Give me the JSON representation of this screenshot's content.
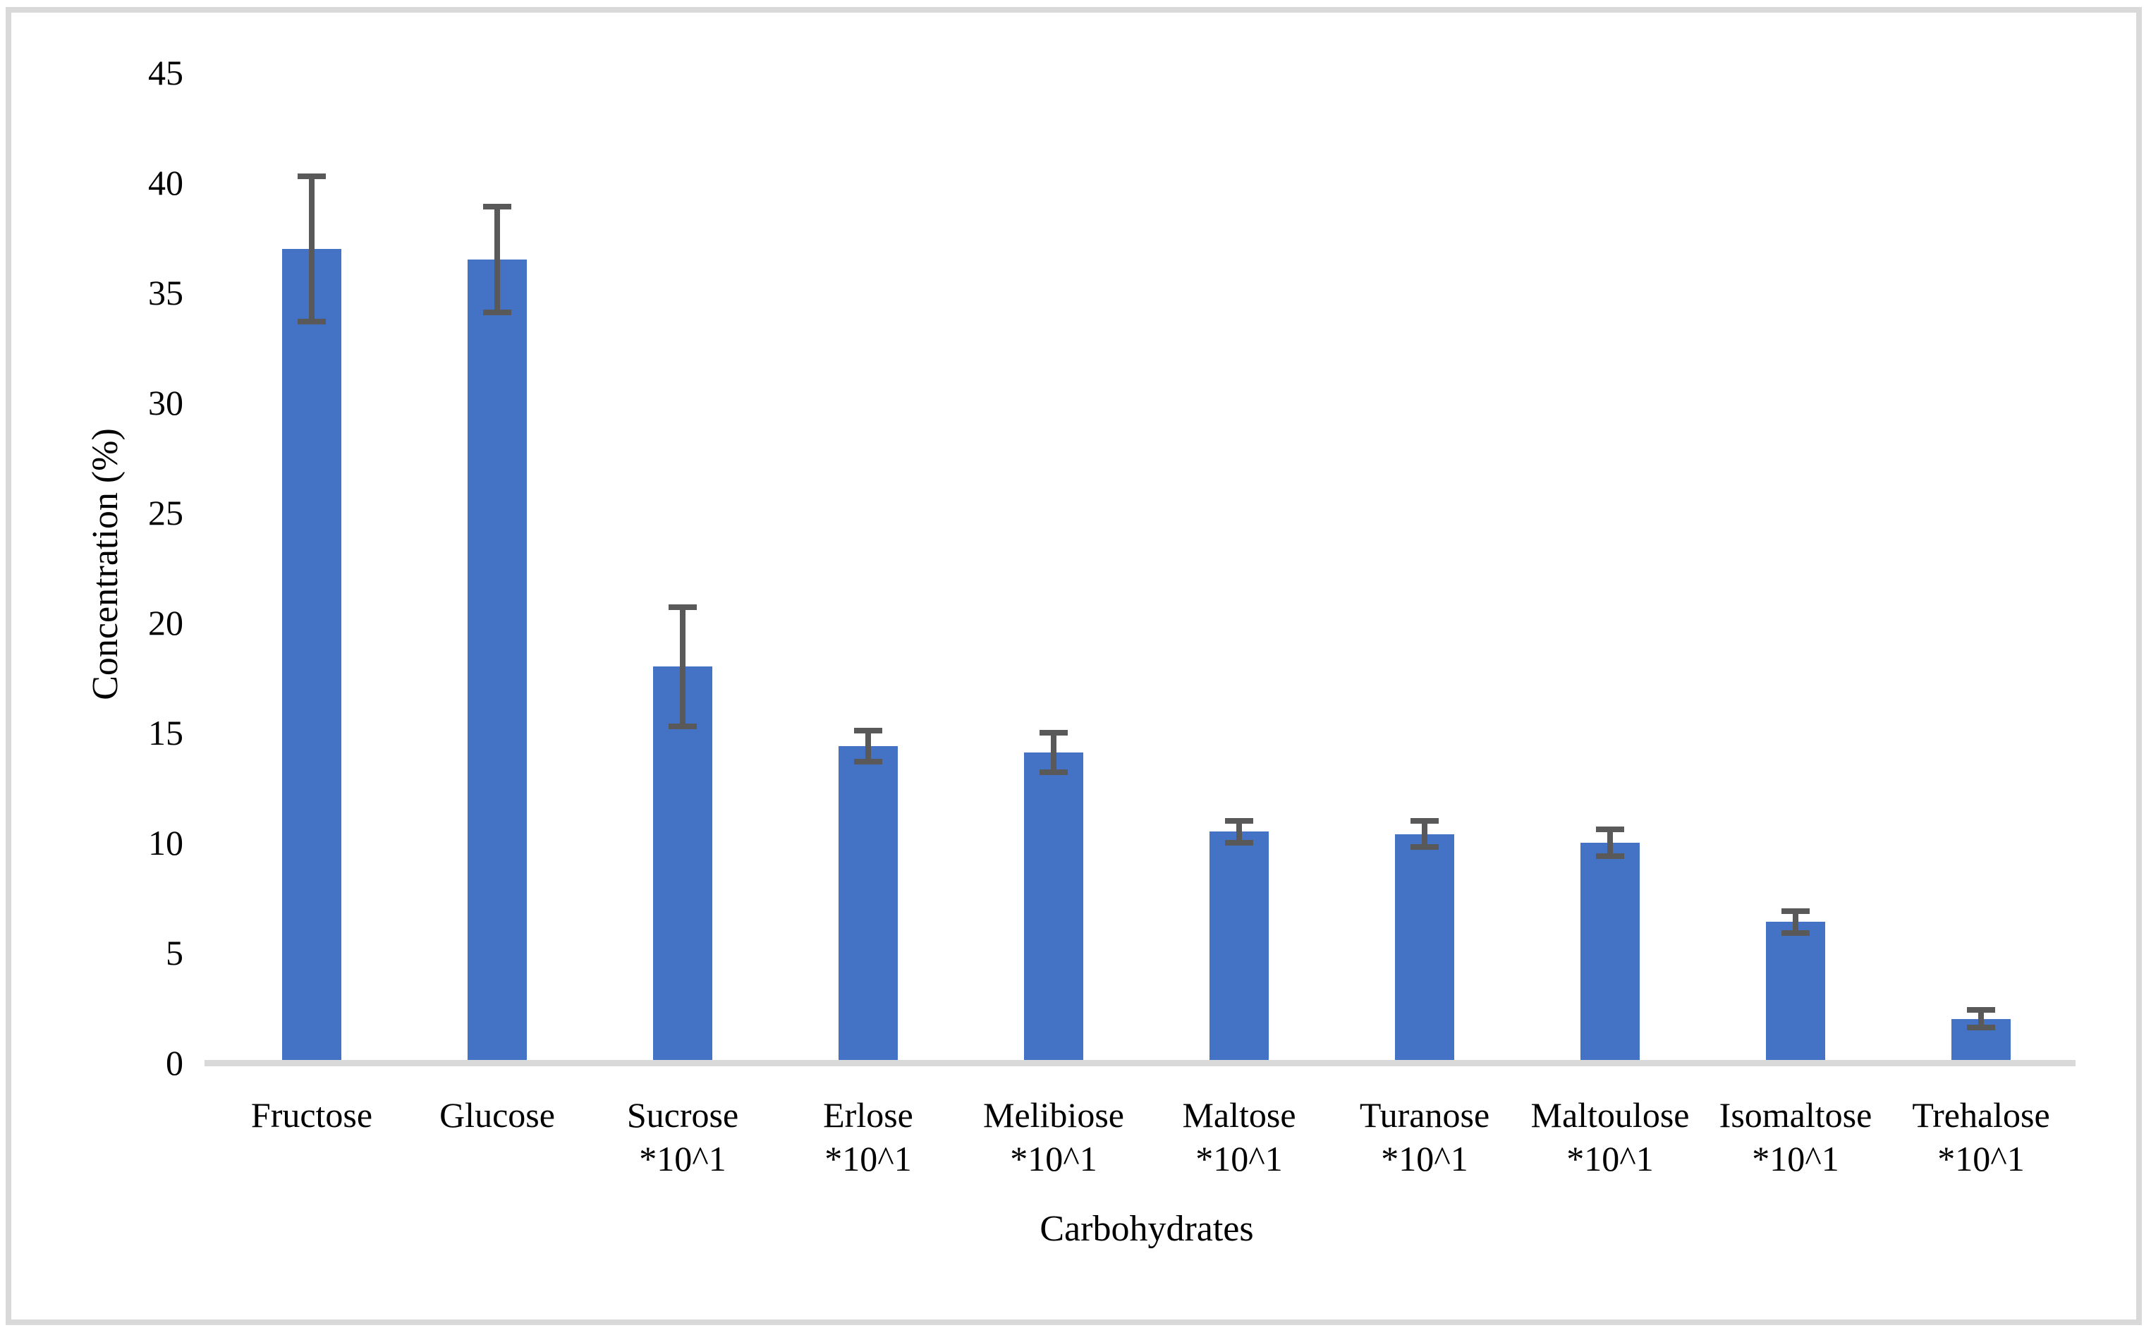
{
  "chart_data": {
    "type": "bar",
    "title": "",
    "xlabel": "Carbohydrates",
    "ylabel": "Concentration (%)",
    "ylim": [
      0,
      45
    ],
    "yticks": [
      0,
      5,
      10,
      15,
      20,
      25,
      30,
      35,
      40,
      45
    ],
    "grid": false,
    "legend": false,
    "categories": [
      "Fructose",
      "Glucose",
      "Sucrose *10^1",
      "Erlose *10^1",
      "Melibiose *10^1",
      "Maltose *10^1",
      "Turanose *10^1",
      "Maltoulose *10^1",
      "Isomaltose *10^1",
      "Trehalose *10^1"
    ],
    "category_lines": [
      [
        "Fructose"
      ],
      [
        "Glucose"
      ],
      [
        "Sucrose",
        "*10^1"
      ],
      [
        "Erlose",
        "*10^1"
      ],
      [
        "Melibiose",
        "*10^1"
      ],
      [
        "Maltose",
        "*10^1"
      ],
      [
        "Turanose",
        "*10^1"
      ],
      [
        "Maltoulose",
        "*10^1"
      ],
      [
        "Isomaltose",
        "*10^1"
      ],
      [
        "Trehalose",
        "*10^1"
      ]
    ],
    "values": [
      37.0,
      36.5,
      18.0,
      14.4,
      14.1,
      10.5,
      10.4,
      10.0,
      6.4,
      2.0
    ],
    "errors": [
      3.3,
      2.4,
      2.7,
      0.7,
      0.9,
      0.5,
      0.6,
      0.6,
      0.5,
      0.4
    ],
    "colors": {
      "bar": "#4472C4",
      "error_bar": "#595959",
      "axis_line": "#D9D9D9",
      "frame_border": "#D9D9D9",
      "text": "#000000",
      "background": "#FFFFFF"
    }
  }
}
